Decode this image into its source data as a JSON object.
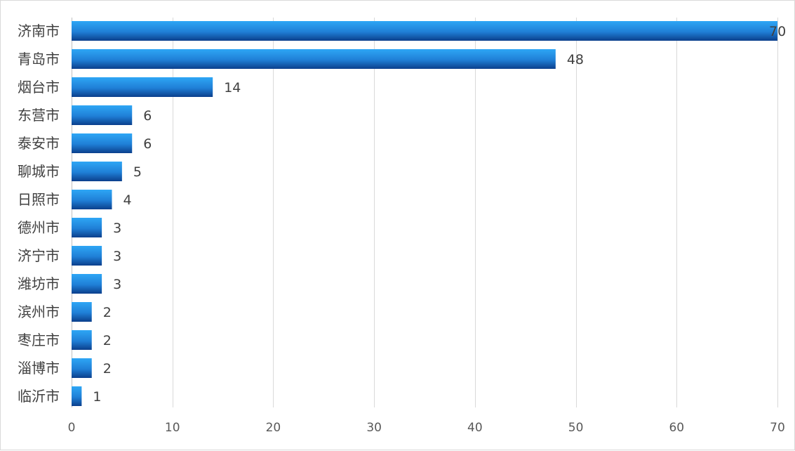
{
  "chart_data": {
    "type": "bar",
    "orientation": "horizontal",
    "categories": [
      "济南市",
      "青岛市",
      "烟台市",
      "东营市",
      "泰安市",
      "聊城市",
      "日照市",
      "德州市",
      "济宁市",
      "潍坊市",
      "滨州市",
      "枣庄市",
      "淄博市",
      "临沂市"
    ],
    "values": [
      70,
      48,
      14,
      6,
      6,
      5,
      4,
      3,
      3,
      3,
      2,
      2,
      2,
      1
    ],
    "xlim": [
      0,
      70
    ],
    "xticks": [
      0,
      10,
      20,
      30,
      40,
      50,
      60,
      70
    ],
    "grid": true,
    "data_labels": true,
    "bar_color": "#1f7fd6",
    "bar_color_light": "#2ea6f5",
    "bar_color_dark": "#0b3f8c",
    "grid_color": "#d9d9d9"
  }
}
